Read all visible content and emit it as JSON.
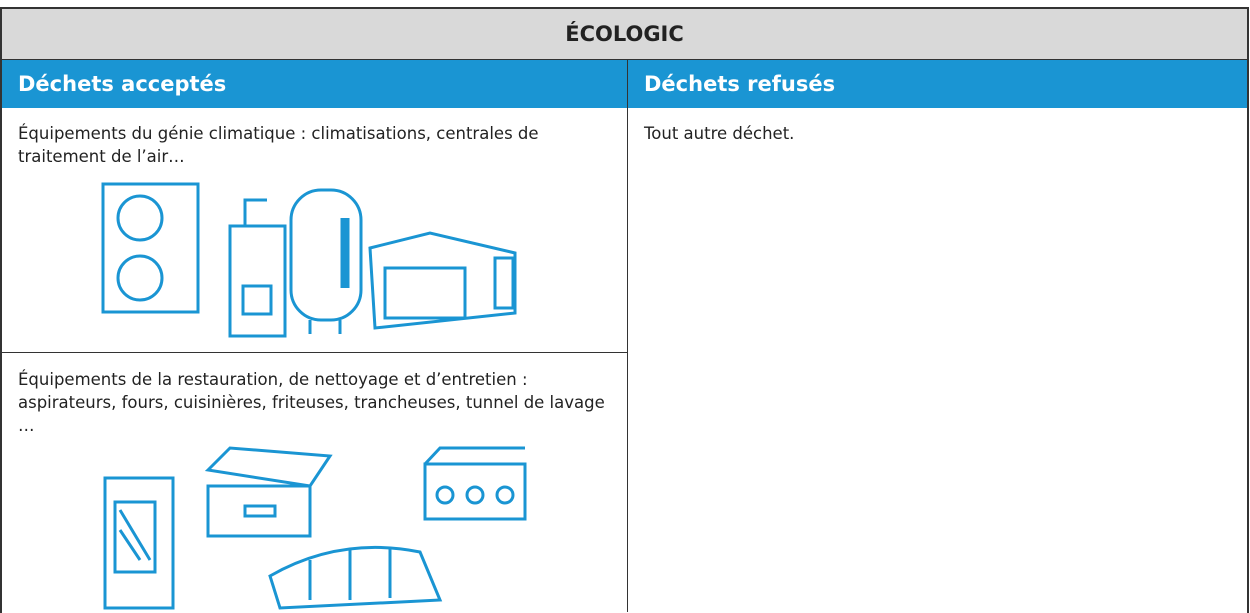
{
  "table": {
    "title": "ÉCOLOGIC",
    "columns": [
      "Déchets acceptés",
      "Déchets refusés"
    ],
    "accepted": [
      "Équipements du génie climatique : climatisations, centrales de traitement de l’air…",
      "Équipements de la restauration, de nettoyage et d’entretien : aspirateurs, fours, cuisinières, friteuses, trancheuses, tunnel de lavage …"
    ],
    "refused": [
      "Tout autre déchet."
    ]
  }
}
